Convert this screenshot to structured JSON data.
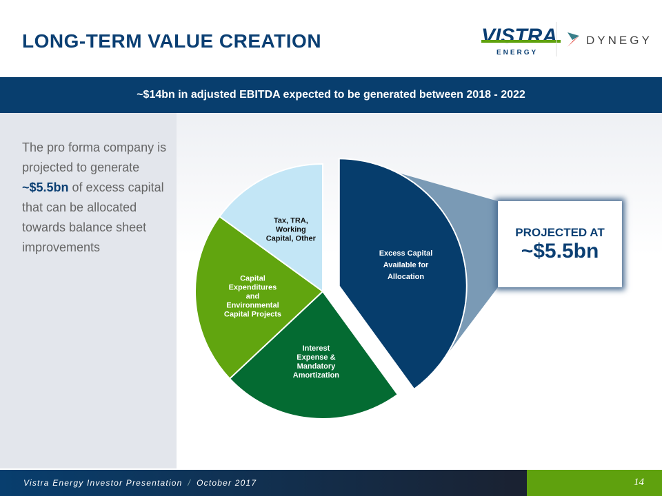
{
  "header": {
    "title": "LONG-TERM VALUE CREATION",
    "logos": [
      "VISTRA ENERGY",
      "DYNEGY"
    ]
  },
  "banner": {
    "text": "~$14bn in adjusted EBITDA expected to be generated between 2018 - 2022"
  },
  "sidebar": {
    "pre": "The pro forma company is projected to generate ",
    "highlight": "~$5.5bn",
    "post": " of excess capital that can be allocated towards balance sheet improvements"
  },
  "callout": {
    "line1": "PROJECTED AT",
    "line2": "~$5.5bn"
  },
  "chart_data": {
    "type": "pie",
    "title": "",
    "unit": "approx. share of total (%)",
    "categories": [
      "Excess Capital Available for Allocation",
      "Interest Expense & Mandatory Amortization",
      "Capital Expenditures and Environmental Capital Projects",
      "Tax, TRA, Working Capital, Other"
    ],
    "label_lines": [
      [
        "Excess Capital",
        "Available for",
        "Allocation"
      ],
      [
        "Interest",
        "Expense &",
        "Mandatory",
        "Amortization"
      ],
      [
        "Capital",
        "Expenditures",
        "and",
        "Environmental",
        "Capital Projects"
      ],
      [
        "Tax, TRA,",
        "Working",
        "Capital, Other"
      ]
    ],
    "values": [
      40,
      23,
      22,
      15
    ],
    "colors": [
      "#063d6c",
      "#046b32",
      "#61a50f",
      "#c3e6f6"
    ],
    "label_colors": [
      "#ffffff",
      "#ffffff",
      "#ffffff",
      "#111111"
    ],
    "exploded": "Excess Capital Available for Allocation",
    "callout_color": "#7a9ab5"
  },
  "footer": {
    "presentation": "Vistra Energy Investor Presentation",
    "separator": "/",
    "date": "October 2017",
    "page": "14"
  },
  "colors": {
    "navy": "#0b3f73",
    "green": "#5fa10e"
  }
}
